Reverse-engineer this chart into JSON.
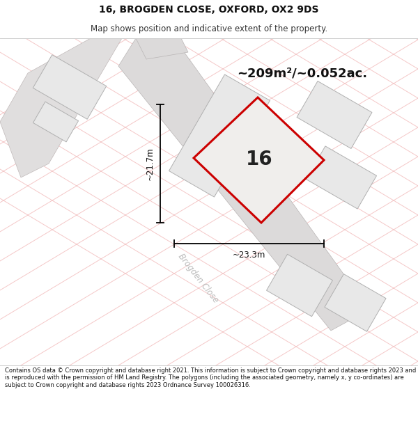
{
  "title_line1": "16, BROGDEN CLOSE, OXFORD, OX2 9DS",
  "title_line2": "Map shows position and indicative extent of the property.",
  "area_label": "~209m²/~0.052ac.",
  "property_number": "16",
  "dim_width": "~23.3m",
  "dim_height": "~21.7m",
  "street_label": "Brogden Close",
  "footer_text": "Contains OS data © Crown copyright and database right 2021. This information is subject to Crown copyright and database rights 2023 and is reproduced with the permission of HM Land Registry. The polygons (including the associated geometry, namely x, y co-ordinates) are subject to Crown copyright and database rights 2023 Ordnance Survey 100026316.",
  "map_bg": "#ffffff",
  "building_fill": "#e8e8e8",
  "building_edge": "#b0b0b0",
  "road_fill": "#e0dede",
  "road_edge": "#c0b8b8",
  "property_fill": "#f0eeec",
  "red_outline": "#cc0000",
  "pink": "#f0b0b0",
  "pink_faint": "#f5c8c8",
  "title_color": "#111111",
  "footer_color": "#111111",
  "dim_color": "#111111",
  "street_color": "#bbbbbb"
}
